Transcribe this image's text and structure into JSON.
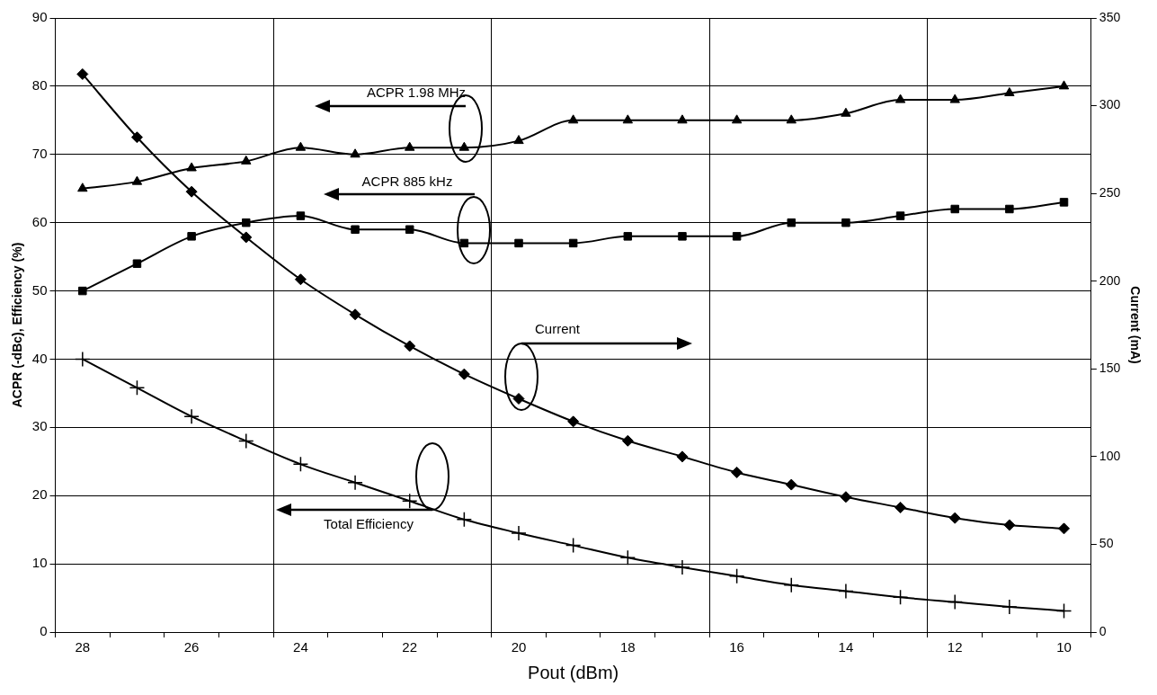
{
  "chart_data": {
    "type": "line",
    "xlabel": "Pout (dBm)",
    "ylabel": "ACPR (-dBc), Efficiency (%)",
    "y2label": "Current (mA)",
    "categories": [
      "28",
      null,
      "26",
      null,
      "24",
      null,
      "22",
      null,
      "20",
      null,
      "18",
      null,
      "16",
      null,
      "14",
      null,
      "12",
      null,
      "10"
    ],
    "ylim": [
      0,
      90
    ],
    "yticks": [
      0,
      10,
      20,
      30,
      40,
      50,
      60,
      70,
      80,
      90
    ],
    "y2lim": [
      0,
      350
    ],
    "y2ticks": [
      0,
      50,
      100,
      150,
      200,
      250,
      300,
      350
    ],
    "grid": true,
    "legend": false,
    "line_style": "solid",
    "series": [
      {
        "color": "#000000",
        "marker": "triangle",
        "values": [
          65,
          66,
          68,
          69,
          71,
          70,
          71,
          71,
          72,
          75,
          75,
          75,
          75,
          75,
          76,
          78,
          78,
          79,
          80
        ]
      },
      {
        "color": "#000000",
        "marker": "square",
        "values": [
          50,
          54,
          58,
          60,
          61,
          59,
          59,
          57,
          57,
          57,
          58,
          58,
          58,
          60,
          60,
          61,
          62,
          62,
          63
        ]
      },
      {
        "color": "#000000",
        "marker": "diamond",
        "axis": "y2",
        "values": [
          318,
          282,
          251,
          225,
          201,
          181,
          163,
          147,
          133,
          120,
          109,
          100,
          91,
          84,
          77,
          71,
          65,
          61,
          59
        ]
      },
      {
        "color": "#000000",
        "marker": "cross",
        "values": [
          40,
          35.8,
          31.6,
          28,
          24.6,
          21.9,
          19.2,
          16.5,
          14.5,
          12.7,
          10.9,
          9.5,
          8.2,
          6.9,
          6,
          5.1,
          4.4,
          3.7,
          3.1
        ]
      }
    ],
    "annotations": [
      "ACPR 1.98 MHz",
      "ACPR 885 kHz",
      "Current",
      "Total Efficiency"
    ]
  }
}
